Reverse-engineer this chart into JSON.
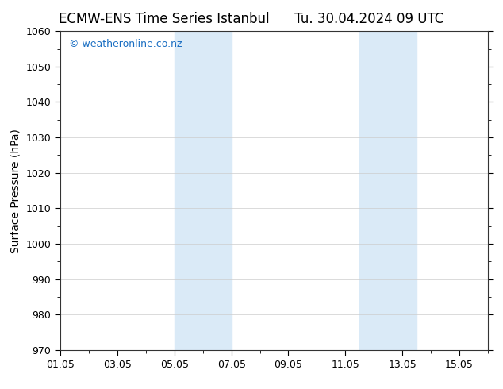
{
  "title_left": "ECMW-ENS Time Series Istanbul",
  "title_right": "Tu. 30.04.2024 09 UTC",
  "ylabel": "Surface Pressure (hPa)",
  "ylim": [
    970,
    1060
  ],
  "yticks": [
    970,
    980,
    990,
    1000,
    1010,
    1020,
    1030,
    1040,
    1050,
    1060
  ],
  "xlim_start": 0,
  "xlim_end": 15,
  "xtick_labels": [
    "01.05",
    "03.05",
    "05.05",
    "07.05",
    "09.05",
    "11.05",
    "13.05",
    "15.05"
  ],
  "xtick_positions": [
    0,
    2,
    4,
    6,
    8,
    10,
    12,
    14
  ],
  "shaded_regions": [
    {
      "xmin": 4.0,
      "xmax": 6.0,
      "color": "#daeaf7"
    },
    {
      "xmin": 10.5,
      "xmax": 12.5,
      "color": "#daeaf7"
    }
  ],
  "watermark": "© weatheronline.co.nz",
  "watermark_color": "#1a6ec2",
  "background_color": "#ffffff",
  "plot_bg_color": "#ffffff",
  "title_fontsize": 12,
  "ylabel_fontsize": 10,
  "tick_fontsize": 9,
  "watermark_fontsize": 9,
  "grid_color": "#cccccc",
  "spine_color": "#333333"
}
